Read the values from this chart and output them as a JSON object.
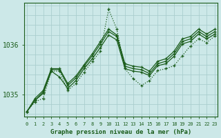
{
  "title": "Graphe pression niveau de la mer (hPa)",
  "bg_color": "#cce8e8",
  "line_color": "#1a5c1a",
  "grid_color": "#aacece",
  "x_ticks": [
    0,
    1,
    2,
    3,
    4,
    5,
    6,
    7,
    8,
    9,
    10,
    11,
    12,
    13,
    14,
    15,
    16,
    17,
    18,
    19,
    20,
    21,
    22,
    23
  ],
  "y_ticks": [
    1035,
    1036
  ],
  "ylim": [
    1034.55,
    1036.85
  ],
  "xlim": [
    -0.3,
    23.3
  ],
  "series": [
    {
      "data": [
        1034.65,
        1034.85,
        1034.92,
        1035.47,
        1035.47,
        1035.08,
        1035.22,
        1035.45,
        1035.67,
        1035.87,
        1036.72,
        1036.32,
        1035.52,
        1035.32,
        1035.18,
        1035.28,
        1035.48,
        1035.52,
        1035.58,
        1035.78,
        1035.98,
        1036.12,
        1036.05,
        1036.18
      ],
      "linestyle": "dotted",
      "marker": "+",
      "markersize": 3.5,
      "linewidth": 0.9
    },
    {
      "data": [
        1034.65,
        1034.88,
        1035.02,
        1035.47,
        1035.35,
        1035.12,
        1035.28,
        1035.52,
        1035.72,
        1035.95,
        1036.2,
        1036.1,
        1035.52,
        1035.47,
        1035.45,
        1035.38,
        1035.58,
        1035.62,
        1035.77,
        1036.02,
        1036.07,
        1036.22,
        1036.12,
        1036.22
      ],
      "linestyle": "solid",
      "marker": "+",
      "markersize": 3.5,
      "linewidth": 0.9
    },
    {
      "data": [
        1034.65,
        1034.88,
        1035.05,
        1035.5,
        1035.5,
        1035.18,
        1035.33,
        1035.57,
        1035.78,
        1036.02,
        1036.27,
        1036.17,
        1035.57,
        1035.52,
        1035.5,
        1035.42,
        1035.62,
        1035.67,
        1035.82,
        1036.07,
        1036.12,
        1036.27,
        1036.17,
        1036.27
      ],
      "linestyle": "solid",
      "marker": "+",
      "markersize": 3.5,
      "linewidth": 0.9
    },
    {
      "data": [
        1034.65,
        1034.92,
        1035.08,
        1035.52,
        1035.52,
        1035.22,
        1035.37,
        1035.6,
        1035.82,
        1036.07,
        1036.32,
        1036.2,
        1035.62,
        1035.57,
        1035.55,
        1035.47,
        1035.67,
        1035.72,
        1035.87,
        1036.12,
        1036.17,
        1036.32,
        1036.22,
        1036.32
      ],
      "linestyle": "solid",
      "marker": "+",
      "markersize": 3.5,
      "linewidth": 0.9
    }
  ]
}
